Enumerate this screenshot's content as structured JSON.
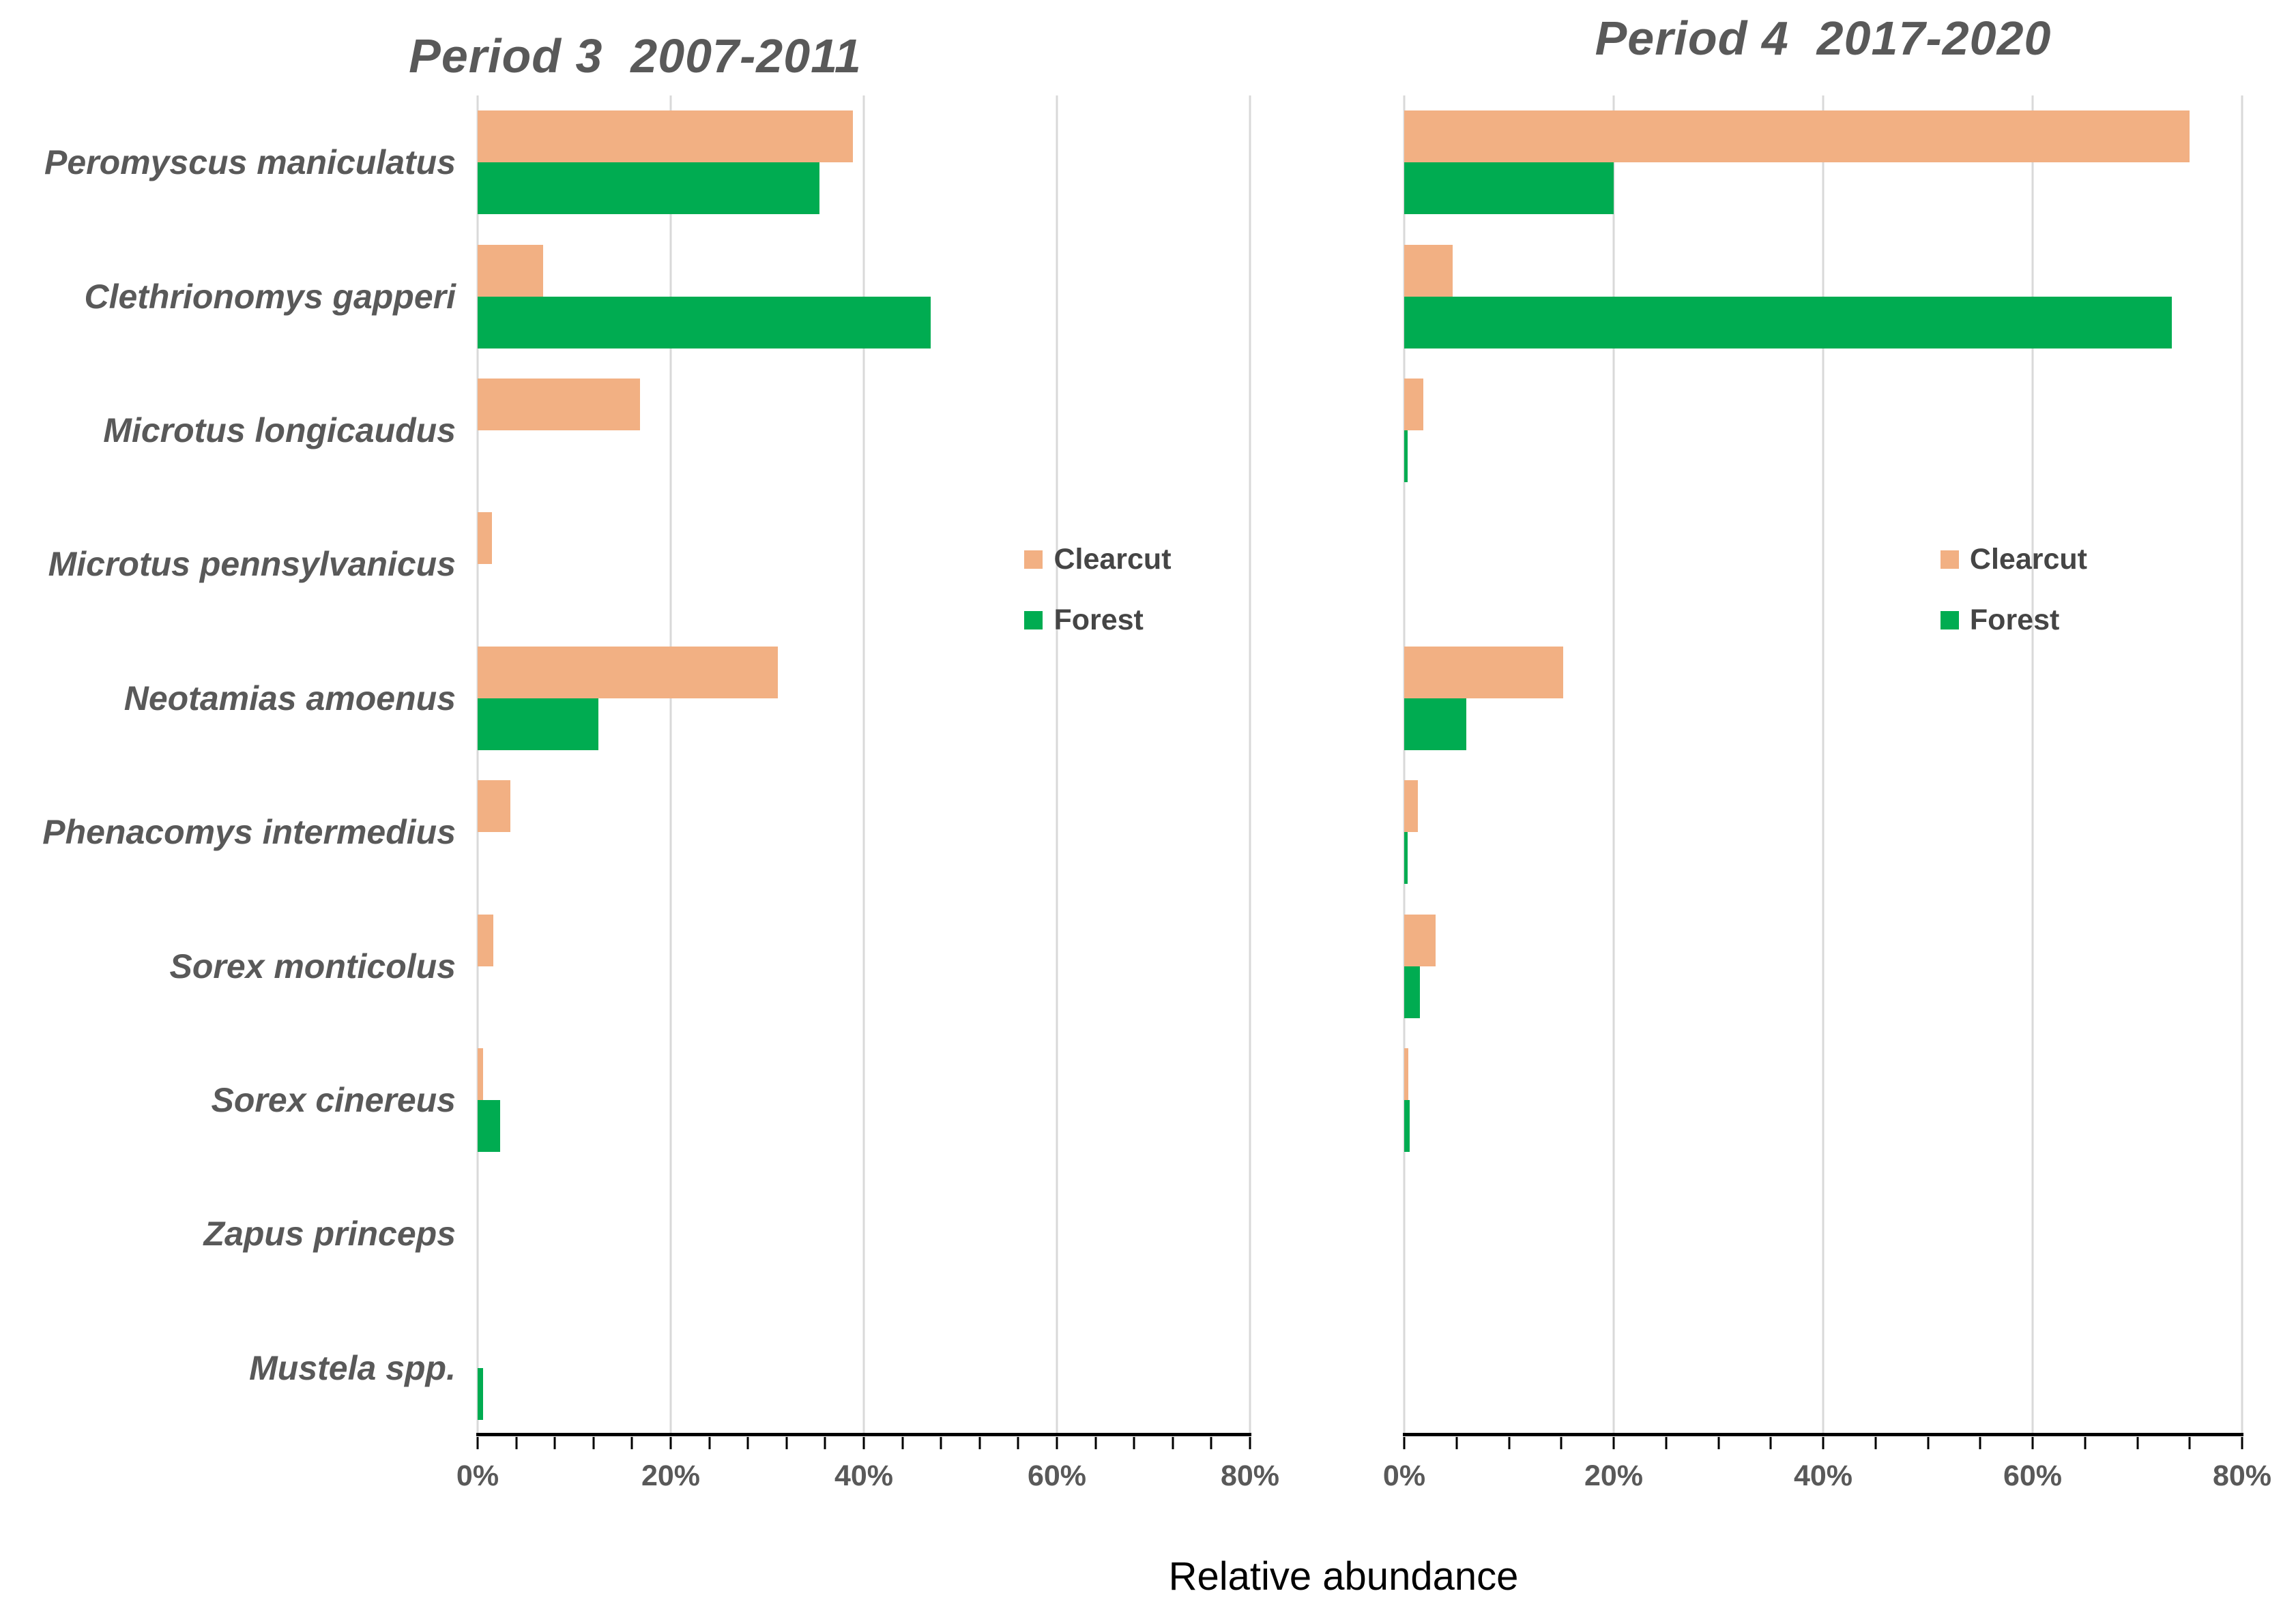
{
  "figure": {
    "xlabel": "Relative abundance",
    "background": "#FFFFFF"
  },
  "colors": {
    "clearcut": "#F2B083",
    "forest": "#00AC51",
    "gridline": "#D9D9D9",
    "axis_line": "#000000",
    "title_text": "#595959",
    "label_text": "#595959",
    "tick_text": "#595959",
    "legend_text": "#454545",
    "xlabel_text": "#000000"
  },
  "chart_data": [
    {
      "type": "bar",
      "orientation": "horizontal",
      "title": "Period 3  2007-2011",
      "categories": [
        "Peromyscus maniculatus",
        "Clethrionomys gapperi",
        "Microtus longicaudus",
        "Microtus pennsylvanicus",
        "Neotamias amoenus",
        "Phenacomys intermedius",
        "Sorex monticolus",
        "Sorex cinereus",
        "Zapus princeps",
        "Mustela spp."
      ],
      "series": [
        {
          "name": "Clearcut",
          "color": "#F2B083",
          "values": [
            38.9,
            6.8,
            16.8,
            1.5,
            31.1,
            3.4,
            1.6,
            0.6,
            0,
            0
          ]
        },
        {
          "name": "Forest",
          "color": "#00AC51",
          "values": [
            35.4,
            46.9,
            0,
            0,
            12.5,
            0,
            0,
            2.3,
            0,
            0.6
          ]
        }
      ],
      "xlim": [
        0,
        80
      ],
      "xtick_labels": [
        "0%",
        "20%",
        "40%",
        "60%",
        "80%"
      ],
      "xtick_values": [
        0,
        20,
        40,
        60,
        80
      ],
      "minor_tick_step": 4,
      "grid": "vertical",
      "legend_position": "inside-right"
    },
    {
      "type": "bar",
      "orientation": "horizontal",
      "title": "Period 4  2017-2020",
      "categories": [
        "Peromyscus maniculatus",
        "Clethrionomys gapperi",
        "Microtus longicaudus",
        "Microtus pennsylvanicus",
        "Neotamias amoenus",
        "Phenacomys intermedius",
        "Sorex monticolus",
        "Sorex cinereus",
        "Zapus princeps",
        "Mustela spp."
      ],
      "series": [
        {
          "name": "Clearcut",
          "color": "#F2B083",
          "values": [
            75.0,
            4.6,
            1.8,
            0,
            15.2,
            1.3,
            3.0,
            0.4,
            0,
            0
          ]
        },
        {
          "name": "Forest",
          "color": "#00AC51",
          "values": [
            20.0,
            73.3,
            0.3,
            0,
            5.9,
            0.3,
            1.5,
            0.5,
            0,
            0
          ]
        }
      ],
      "xlim": [
        0,
        80
      ],
      "xtick_labels": [
        "0%",
        "20%",
        "40%",
        "60%",
        "80%"
      ],
      "xtick_values": [
        0,
        20,
        40,
        60,
        80
      ],
      "minor_tick_step": 5,
      "grid": "vertical",
      "legend_position": "inside-right"
    }
  ]
}
